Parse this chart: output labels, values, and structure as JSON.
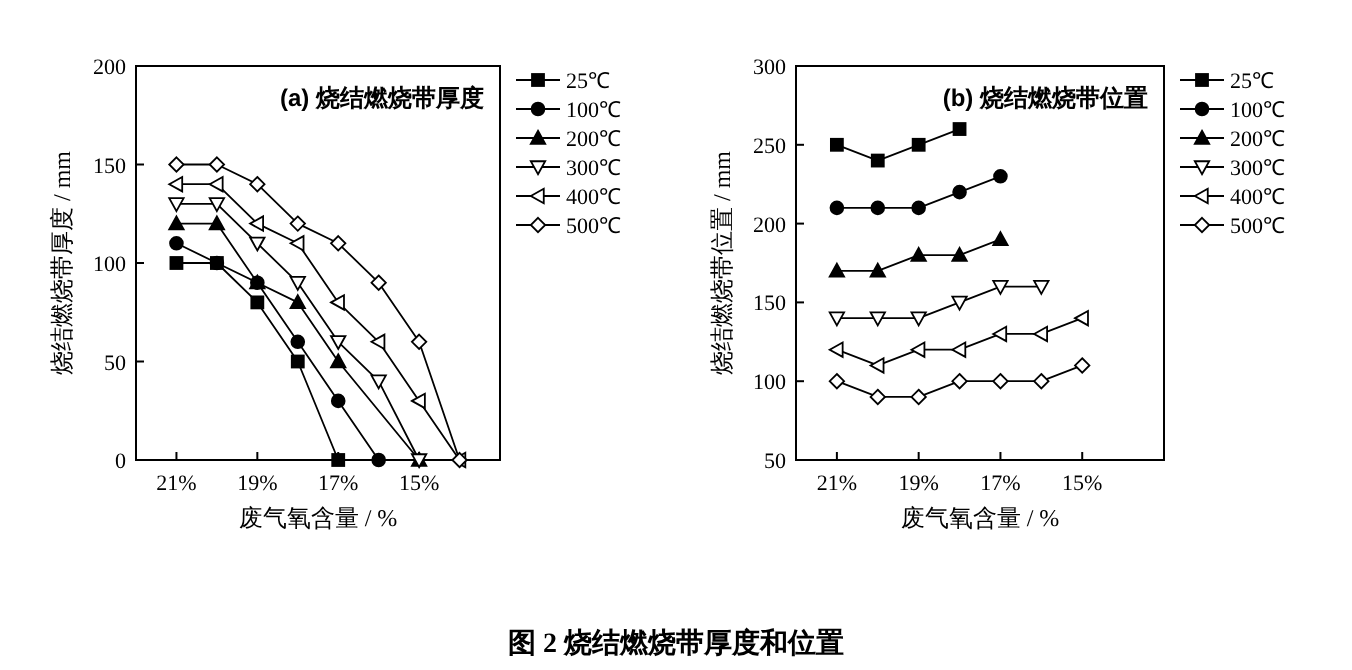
{
  "chart_data": [
    {
      "type": "line",
      "title": "(a) 烧结燃烧带厚度",
      "xlabel": "废气氧含量 / %",
      "ylabel": "烧结燃烧带厚度 / mm",
      "xlim": [
        22,
        13
      ],
      "xticks": [
        {
          "value": 21,
          "label": "21%"
        },
        {
          "value": 19,
          "label": "19%"
        },
        {
          "value": 17,
          "label": "17%"
        },
        {
          "value": 15,
          "label": "15%"
        }
      ],
      "ylim": [
        0,
        200
      ],
      "yticks": [
        0,
        50,
        100,
        150,
        200
      ],
      "grid": false,
      "legend": "right",
      "line_style": "solid",
      "annotations": [
        "图 2  烧结燃烧带厚度和位置"
      ],
      "series": [
        {
          "name": "25℃",
          "color": "#000000",
          "marker": "square",
          "x": [
            21,
            20,
            19,
            18,
            17
          ],
          "values": [
            100,
            100,
            80,
            50,
            0
          ]
        },
        {
          "name": "100℃",
          "color": "#000000",
          "marker": "circle",
          "x": [
            21,
            20,
            19,
            18,
            17,
            16
          ],
          "values": [
            110,
            100,
            90,
            60,
            30,
            0
          ]
        },
        {
          "name": "200℃",
          "color": "#000000",
          "marker": "triangle",
          "x": [
            21,
            20,
            19,
            18,
            17,
            15
          ],
          "values": [
            120,
            120,
            90,
            80,
            50,
            0
          ]
        },
        {
          "name": "300℃",
          "color": "#000000",
          "marker": "triangle-down",
          "x": [
            21,
            20,
            19,
            18,
            17,
            16,
            15
          ],
          "values": [
            130,
            130,
            110,
            90,
            60,
            40,
            0
          ]
        },
        {
          "name": "400℃",
          "color": "#000000",
          "marker": "triangle-left",
          "x": [
            21,
            20,
            19,
            18,
            17,
            16,
            15,
            14
          ],
          "values": [
            140,
            140,
            120,
            110,
            80,
            60,
            30,
            0
          ]
        },
        {
          "name": "500℃",
          "color": "#000000",
          "marker": "diamond",
          "x": [
            21,
            20,
            19,
            18,
            17,
            16,
            15,
            14
          ],
          "values": [
            150,
            150,
            140,
            120,
            110,
            90,
            60,
            0
          ]
        }
      ]
    },
    {
      "type": "line",
      "title": "(b) 烧结燃烧带位置",
      "xlabel": "废气氧含量 / %",
      "ylabel": "烧结燃烧带位置 / mm",
      "xlim": [
        22,
        13
      ],
      "xticks": [
        {
          "value": 21,
          "label": "21%"
        },
        {
          "value": 19,
          "label": "19%"
        },
        {
          "value": 17,
          "label": "17%"
        },
        {
          "value": 15,
          "label": "15%"
        }
      ],
      "ylim": [
        50,
        300
      ],
      "yticks": [
        50,
        100,
        150,
        200,
        250,
        300
      ],
      "grid": false,
      "legend": "right",
      "line_style": "solid",
      "series": [
        {
          "name": "25℃",
          "color": "#000000",
          "marker": "square",
          "x": [
            21,
            20,
            19,
            18
          ],
          "values": [
            250,
            240,
            250,
            260
          ]
        },
        {
          "name": "100℃",
          "color": "#000000",
          "marker": "circle",
          "x": [
            21,
            20,
            19,
            18,
            17
          ],
          "values": [
            210,
            210,
            210,
            220,
            230
          ]
        },
        {
          "name": "200℃",
          "color": "#000000",
          "marker": "triangle",
          "x": [
            21,
            20,
            19,
            18,
            17
          ],
          "values": [
            170,
            170,
            180,
            180,
            190
          ]
        },
        {
          "name": "300℃",
          "color": "#000000",
          "marker": "triangle-down",
          "x": [
            21,
            20,
            19,
            18,
            17,
            16
          ],
          "values": [
            140,
            140,
            140,
            150,
            160,
            160
          ]
        },
        {
          "name": "400℃",
          "color": "#000000",
          "marker": "triangle-left",
          "x": [
            21,
            20,
            19,
            18,
            17,
            16,
            15
          ],
          "values": [
            120,
            110,
            120,
            120,
            130,
            130,
            140
          ]
        },
        {
          "name": "500℃",
          "color": "#000000",
          "marker": "diamond",
          "x": [
            21,
            20,
            19,
            18,
            17,
            16,
            15
          ],
          "values": [
            100,
            90,
            90,
            100,
            100,
            100,
            110
          ]
        }
      ]
    }
  ]
}
